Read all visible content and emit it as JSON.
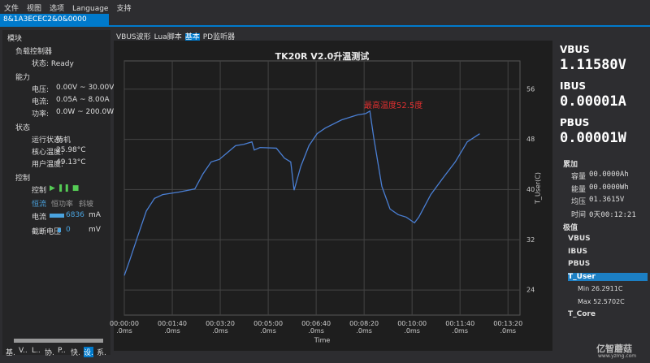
{
  "menu": [
    "文件",
    "视图",
    "选项",
    "Language",
    "支持"
  ],
  "tab": "8&1A3ECEC2&0&0000",
  "left_panel": {
    "title": "模块",
    "sections": [
      {
        "title": "负载控制器",
        "items": [
          [
            "状态: Ready",
            ""
          ]
        ]
      },
      {
        "title": "能力",
        "items": [
          [
            "电压:",
            "0.00V ~ 30.00V"
          ],
          [
            "电流:",
            "0.05A ~ 8.00A"
          ],
          [
            "功率:",
            "0.0W ~ 200.0W"
          ]
        ]
      },
      {
        "title": "状态",
        "items": [
          [
            "运行状态:",
            "待机"
          ],
          [
            "核心温度:",
            "25.98°C"
          ],
          [
            "用户温度:",
            "49.13°C"
          ]
        ]
      },
      {
        "title": "控制",
        "items": [
          [
            "控制",
            ""
          ]
        ]
      }
    ],
    "modes": [
      "恒流",
      "恒功率",
      "斜坡"
    ],
    "current": {
      "label": "电流",
      "value": "6836",
      "unit": "mA"
    },
    "cutoff": {
      "label": "截断电压",
      "value": "0",
      "unit": "mV"
    },
    "bottom_tabs": [
      "基.",
      "V..",
      "L..",
      "协.",
      "P..",
      "快.",
      "设.",
      "系."
    ]
  },
  "sub_tabs": [
    "VBUS波形",
    "Lua脚本",
    "基本",
    "PD监听器"
  ],
  "chart_data": {
    "type": "line",
    "title": "TK20R V2.0升温测试",
    "x_label": "Time",
    "y_label": "T_User(C)",
    "annotation": "最高温度52.5度",
    "color": "#4a7fd4",
    "grid": true,
    "x": [
      0,
      12,
      29,
      46,
      63,
      80,
      114,
      147,
      164,
      181,
      198,
      215,
      232,
      249,
      266,
      271,
      283,
      317,
      334,
      347,
      354,
      368,
      385,
      402,
      419,
      453,
      486,
      503,
      512,
      520,
      537,
      554,
      571,
      588,
      605,
      614,
      639,
      664,
      690,
      715,
      741
    ],
    "values": [
      26.3,
      28.9,
      32.8,
      36.6,
      38.6,
      39.2,
      39.6,
      40.1,
      42.5,
      44.4,
      44.8,
      45.9,
      47.0,
      47.2,
      47.6,
      46.3,
      46.7,
      46.6,
      45.0,
      44.4,
      39.9,
      43.7,
      47.0,
      48.9,
      49.8,
      51.1,
      51.9,
      52.1,
      52.5,
      48.3,
      40.5,
      36.9,
      36.0,
      35.6,
      34.7,
      35.6,
      39.2,
      41.8,
      44.4,
      47.6,
      48.9
    ],
    "xlim": [
      0,
      825
    ],
    "ylim": [
      20,
      60.5
    ],
    "xticks": [
      {
        "value": 0,
        "label": "00:00:00\n.0ms"
      },
      {
        "value": 100,
        "label": "00:01:40\n.0ms"
      },
      {
        "value": 200,
        "label": "00:03:20\n.0ms"
      },
      {
        "value": 300,
        "label": "00:05:00\n.0ms"
      },
      {
        "value": 400,
        "label": "00:06:40\n.0ms"
      },
      {
        "value": 500,
        "label": "00:08:20\n.0ms"
      },
      {
        "value": 600,
        "label": "00:10:00\n.0ms"
      },
      {
        "value": 700,
        "label": "00:11:40\n.0ms"
      },
      {
        "value": 800,
        "label": "00:13:20\n.0ms"
      }
    ],
    "yticks": [
      24,
      32,
      40,
      48,
      56
    ]
  },
  "right_panel": {
    "readings": [
      [
        "VBUS",
        "1.11580V"
      ],
      [
        "IBUS",
        "0.00001A"
      ],
      [
        "PBUS",
        "0.00001W"
      ]
    ],
    "accum_title": "累加",
    "accum": [
      [
        "容量",
        "00.0000Ah"
      ],
      [
        "能量",
        "00.0000Wh"
      ],
      [
        "均压",
        "01.3615V"
      ],
      [
        "时间",
        "0天00:12:21"
      ]
    ],
    "extreme_title": "极值",
    "extremes": [
      "VBUS",
      "IBUS",
      "PBUS",
      "T_User",
      "T_Core"
    ],
    "t_user": [
      "Min 26.2911C",
      "Max 52.5702C"
    ]
  },
  "watermark": [
    "亿智蘑菇",
    "www.yzmg.com"
  ]
}
